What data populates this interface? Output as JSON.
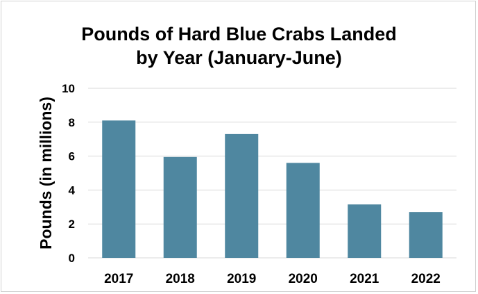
{
  "chart_data": {
    "type": "bar",
    "title_line1": "Pounds of Hard Blue Crabs Landed",
    "title_line2": "by Year (January-June)",
    "xlabel": "",
    "ylabel": "Pounds (in millions)",
    "categories": [
      "2017",
      "2018",
      "2019",
      "2020",
      "2021",
      "2022"
    ],
    "values": [
      8.1,
      5.95,
      7.3,
      5.6,
      3.15,
      2.7
    ],
    "ylim": [
      0,
      10
    ],
    "yticks": [
      "0",
      "2",
      "4",
      "6",
      "8",
      "10"
    ],
    "grid": true,
    "bar_color": "#4f87a0",
    "grid_color": "#d9d9d9"
  }
}
